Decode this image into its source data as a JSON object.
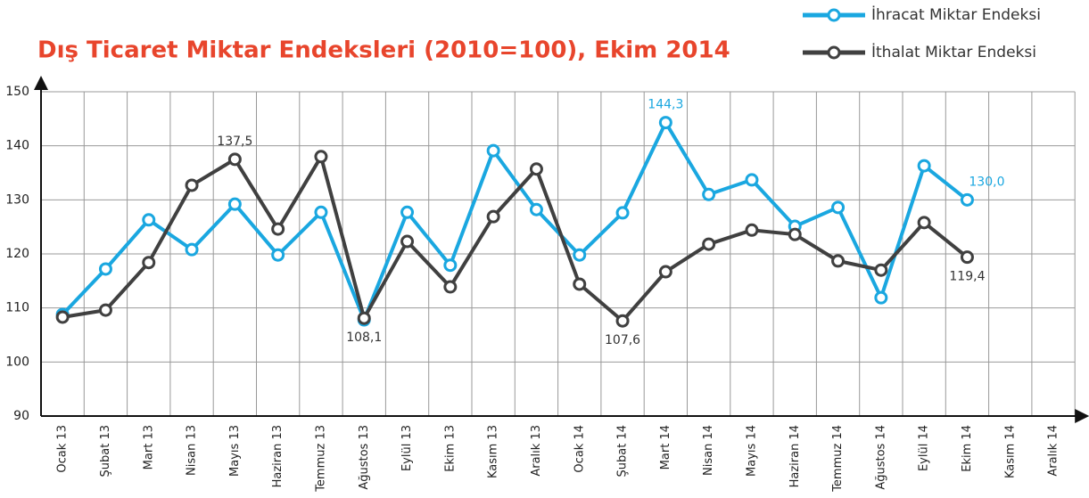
{
  "chart_data": {
    "type": "line",
    "title": "Dış Ticaret Miktar Endeksleri (2010=100), Ekim 2014",
    "categories": [
      "Ocak 13",
      "Şubat 13",
      "Mart 13",
      "Nisan 13",
      "Mayıs 13",
      "Haziran 13",
      "Temmuz 13",
      "Ağustos 13",
      "Eylül 13",
      "Ekim 13",
      "Kasım 13",
      "Aralık 13",
      "Ocak 14",
      "Şubat 14",
      "Mart 14",
      "Nisan 14",
      "Mayıs 14",
      "Haziran 14",
      "Temmuz 14",
      "Ağustos 14",
      "Eylül 14",
      "Ekim 14",
      "Kasım 14",
      "Aralık 14"
    ],
    "series": [
      {
        "name": "İhracat Miktar Endeksi",
        "color": "#1aa7e0",
        "values": [
          108.8,
          117.2,
          126.3,
          120.8,
          129.2,
          119.8,
          127.7,
          107.8,
          127.7,
          117.9,
          139.1,
          128.2,
          119.8,
          127.6,
          144.3,
          131.0,
          133.7,
          125.1,
          128.6,
          111.9,
          136.3,
          130.0,
          null,
          null
        ],
        "value_labels": [
          null,
          null,
          null,
          null,
          null,
          null,
          null,
          null,
          null,
          null,
          null,
          null,
          null,
          null,
          "144,3",
          null,
          null,
          null,
          null,
          null,
          null,
          "130,0",
          null,
          null
        ]
      },
      {
        "name": "İthalat Miktar Endeksi",
        "color": "#404040",
        "values": [
          108.3,
          109.6,
          118.4,
          132.7,
          137.5,
          124.6,
          138.0,
          108.1,
          122.3,
          113.9,
          126.9,
          135.7,
          114.4,
          107.6,
          116.7,
          121.8,
          124.4,
          123.6,
          118.7,
          117.0,
          125.8,
          119.4,
          null,
          null
        ],
        "value_labels": [
          null,
          null,
          null,
          null,
          "137,5",
          null,
          null,
          "108,1",
          null,
          null,
          null,
          null,
          null,
          "107,6",
          null,
          null,
          null,
          null,
          null,
          null,
          null,
          "119,4",
          null,
          null
        ]
      }
    ],
    "ylim": [
      90,
      150
    ],
    "yticks": [
      90,
      100,
      110,
      120,
      130,
      140,
      150
    ],
    "grid": true,
    "legend": "top-right"
  }
}
